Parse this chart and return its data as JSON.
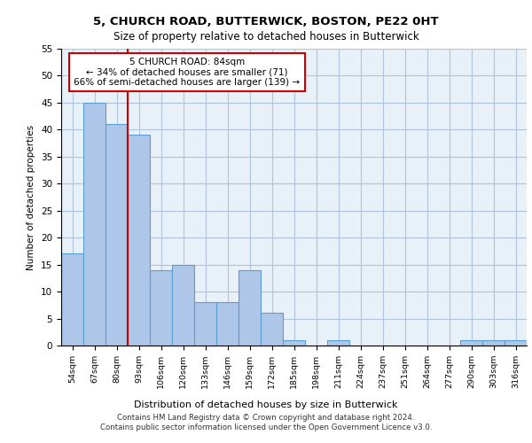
{
  "title1": "5, CHURCH ROAD, BUTTERWICK, BOSTON, PE22 0HT",
  "title2": "Size of property relative to detached houses in Butterwick",
  "xlabel": "Distribution of detached houses by size in Butterwick",
  "ylabel": "Number of detached properties",
  "categories": [
    "54sqm",
    "67sqm",
    "80sqm",
    "93sqm",
    "106sqm",
    "120sqm",
    "133sqm",
    "146sqm",
    "159sqm",
    "172sqm",
    "185sqm",
    "198sqm",
    "211sqm",
    "224sqm",
    "237sqm",
    "251sqm",
    "264sqm",
    "277sqm",
    "290sqm",
    "303sqm",
    "316sqm"
  ],
  "values": [
    17,
    45,
    41,
    39,
    14,
    15,
    8,
    8,
    14,
    6,
    1,
    0,
    1,
    0,
    0,
    0,
    0,
    0,
    1,
    1,
    1
  ],
  "bar_color": "#aec6e8",
  "bar_edge_color": "#5a9fd4",
  "bar_edge_width": 0.8,
  "red_line_x": 2.5,
  "annotation_text": "5 CHURCH ROAD: 84sqm\n← 34% of detached houses are smaller (71)\n66% of semi-detached houses are larger (139) →",
  "annotation_box_color": "#ffffff",
  "annotation_box_edge_color": "#cc0000",
  "red_line_color": "#cc0000",
  "grid_color": "#b0c4de",
  "bg_color": "#e8f0f8",
  "footer1": "Contains HM Land Registry data © Crown copyright and database right 2024.",
  "footer2": "Contains public sector information licensed under the Open Government Licence v3.0.",
  "ylim": [
    0,
    55
  ],
  "yticks": [
    0,
    5,
    10,
    15,
    20,
    25,
    30,
    35,
    40,
    45,
    50,
    55
  ]
}
